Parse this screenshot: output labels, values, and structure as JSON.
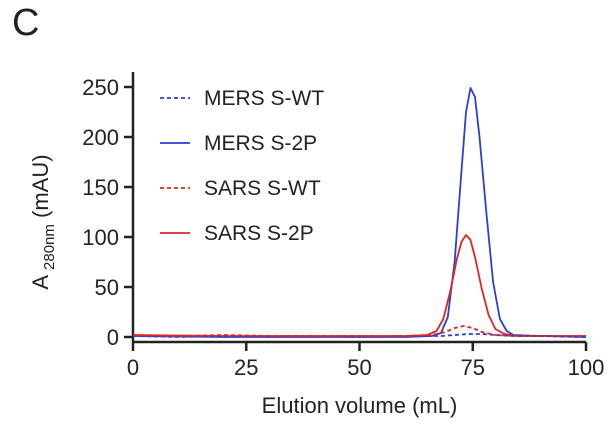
{
  "panel_label": "C",
  "chart_data": {
    "type": "line",
    "xlabel": "Elution volume (mL)",
    "ylabel_main": "A",
    "ylabel_sub": "280nm",
    "ylabel_unit": "(mAU)",
    "xlim": [
      0,
      100
    ],
    "ylim": [
      -5,
      265
    ],
    "xticks": [
      0,
      25,
      50,
      75,
      100
    ],
    "yticks": [
      0,
      50,
      100,
      150,
      200,
      250
    ],
    "grid": false,
    "legend_position": "top-left",
    "series": [
      {
        "name": "MERS S-WT",
        "color": "#2b3fd6",
        "dash": "dashed",
        "points": [
          [
            0,
            1
          ],
          [
            10,
            0
          ],
          [
            20,
            1
          ],
          [
            30,
            0
          ],
          [
            40,
            1
          ],
          [
            50,
            0
          ],
          [
            60,
            1
          ],
          [
            68,
            1
          ],
          [
            71,
            2
          ],
          [
            74,
            3
          ],
          [
            77,
            3
          ],
          [
            80,
            2
          ],
          [
            84,
            1
          ],
          [
            90,
            1
          ],
          [
            100,
            0
          ]
        ]
      },
      {
        "name": "MERS S-2P",
        "color": "#2b3fd6",
        "dash": "solid",
        "points": [
          [
            0,
            1
          ],
          [
            20,
            0
          ],
          [
            40,
            0
          ],
          [
            60,
            0
          ],
          [
            66,
            1
          ],
          [
            68,
            4
          ],
          [
            69.5,
            20
          ],
          [
            71,
            75
          ],
          [
            72.5,
            165
          ],
          [
            73.5,
            225
          ],
          [
            74.5,
            249
          ],
          [
            75.5,
            240
          ],
          [
            76.5,
            200
          ],
          [
            78,
            125
          ],
          [
            79.5,
            55
          ],
          [
            81,
            18
          ],
          [
            82.5,
            6
          ],
          [
            84,
            2
          ],
          [
            90,
            1
          ],
          [
            100,
            0
          ]
        ]
      },
      {
        "name": "SARS S-WT",
        "color": "#e02424",
        "dash": "dashed",
        "points": [
          [
            0,
            2
          ],
          [
            10,
            1
          ],
          [
            20,
            2
          ],
          [
            30,
            1
          ],
          [
            40,
            1
          ],
          [
            50,
            1
          ],
          [
            60,
            1
          ],
          [
            66,
            2
          ],
          [
            69,
            5
          ],
          [
            71,
            9
          ],
          [
            73,
            11
          ],
          [
            75,
            9
          ],
          [
            77,
            5
          ],
          [
            80,
            2
          ],
          [
            85,
            1
          ],
          [
            100,
            1
          ]
        ]
      },
      {
        "name": "SARS S-2P",
        "color": "#e02424",
        "dash": "solid",
        "points": [
          [
            0,
            2
          ],
          [
            20,
            1
          ],
          [
            40,
            1
          ],
          [
            60,
            1
          ],
          [
            65,
            2
          ],
          [
            67,
            6
          ],
          [
            68.5,
            18
          ],
          [
            70,
            45
          ],
          [
            71.5,
            78
          ],
          [
            72.5,
            95
          ],
          [
            73.5,
            102
          ],
          [
            74.5,
            97
          ],
          [
            75.5,
            80
          ],
          [
            77,
            48
          ],
          [
            78.5,
            22
          ],
          [
            80,
            8
          ],
          [
            82,
            3
          ],
          [
            85,
            1
          ],
          [
            100,
            1
          ]
        ]
      }
    ]
  }
}
